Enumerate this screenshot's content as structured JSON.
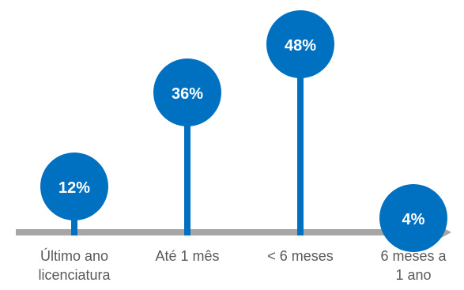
{
  "chart_data": {
    "type": "lollipop",
    "categories": [
      "Último ano\nlicenciatura",
      "Até 1 mês",
      "< 6 meses",
      "6 meses a\n1 ano"
    ],
    "values": [
      12,
      36,
      48,
      4
    ],
    "value_labels": [
      "12%",
      "36%",
      "48%",
      "4%"
    ],
    "unit": "%",
    "title": "",
    "xlabel": "",
    "ylabel": "",
    "ylim": [
      0,
      50
    ],
    "grid": false,
    "legend": "none",
    "colors": {
      "circle": "#0070C0",
      "stem": "#0070C0",
      "axis": "#A6A6A6",
      "value_text": "#FFFFFF",
      "category_text": "#595959"
    }
  }
}
